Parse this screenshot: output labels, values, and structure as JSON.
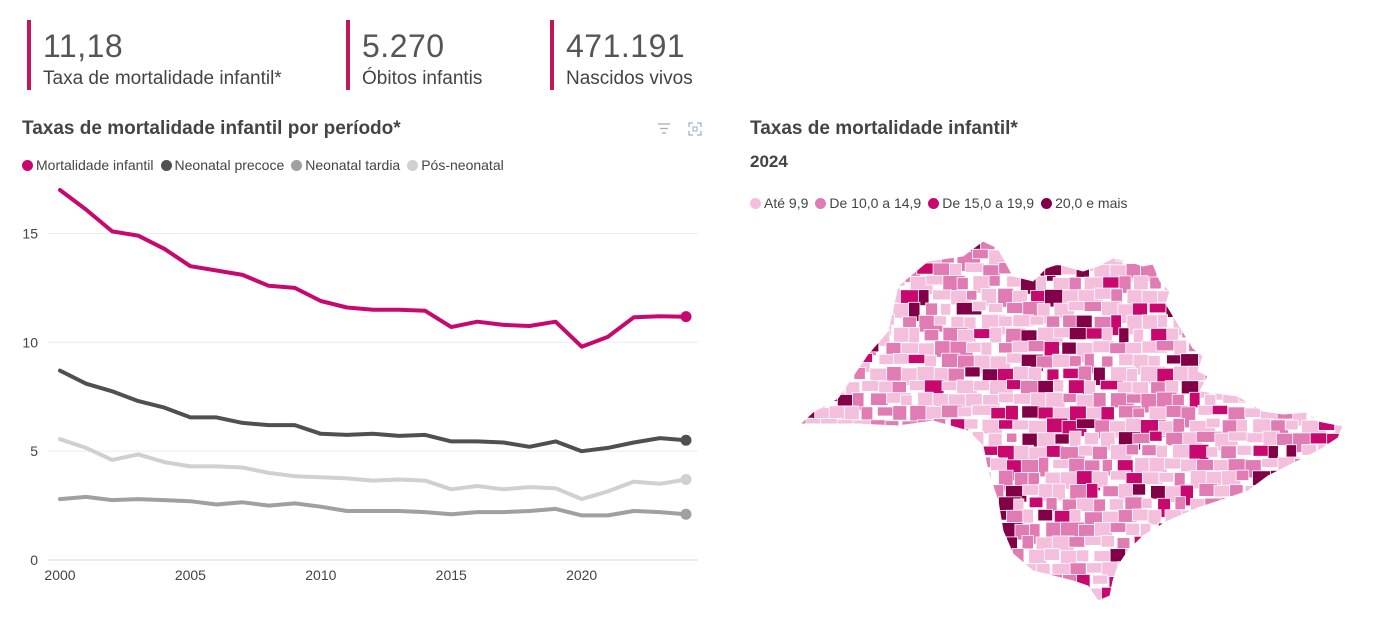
{
  "kpis": [
    {
      "value": "11,18",
      "label": "Taxa de mortalidade infantil*"
    },
    {
      "value": "5.270",
      "label": "Óbitos infantis"
    },
    {
      "value": "471.191",
      "label": "Nascidos vivos"
    }
  ],
  "accent_color": "#c2185b",
  "line_chart": {
    "title": "Taxas de mortalidade infantil por período*",
    "icons": [
      "filter-icon",
      "focus-mode-icon"
    ]
  },
  "map_chart": {
    "title": "Taxas de mortalidade infantil*",
    "subtitle": "2024",
    "legend": [
      {
        "label": "Até 9,9",
        "color": "#f4bfdc"
      },
      {
        "label": "De 10,0 a 14,9",
        "color": "#e07bb3"
      },
      {
        "label": "De 15,0 a 19,9",
        "color": "#c8086f"
      },
      {
        "label": "20,0 e mais",
        "color": "#820048"
      }
    ]
  },
  "chart_data": {
    "type": "line",
    "title": "Taxas de mortalidade infantil por período*",
    "xlabel": "",
    "ylabel": "",
    "xlim": [
      2000,
      2024
    ],
    "ylim": [
      0,
      17
    ],
    "yticks": [
      0,
      5,
      10,
      15
    ],
    "xticks": [
      2000,
      2005,
      2010,
      2015,
      2020
    ],
    "x": [
      2000,
      2001,
      2002,
      2003,
      2004,
      2005,
      2006,
      2007,
      2008,
      2009,
      2010,
      2011,
      2012,
      2013,
      2014,
      2015,
      2016,
      2017,
      2018,
      2019,
      2020,
      2021,
      2022,
      2023,
      2024
    ],
    "series": [
      {
        "name": "Mortalidade infantil",
        "color": "#c8086f",
        "values": [
          17.0,
          16.1,
          15.1,
          14.9,
          14.3,
          13.5,
          13.3,
          13.1,
          12.6,
          12.5,
          11.9,
          11.6,
          11.5,
          11.5,
          11.45,
          10.7,
          10.95,
          10.8,
          10.75,
          10.95,
          9.8,
          10.25,
          11.15,
          11.2,
          11.18
        ]
      },
      {
        "name": "Neonatal precoce",
        "color": "#505050",
        "values": [
          8.7,
          8.1,
          7.75,
          7.3,
          7.0,
          6.55,
          6.55,
          6.3,
          6.2,
          6.2,
          5.8,
          5.75,
          5.8,
          5.7,
          5.75,
          5.45,
          5.45,
          5.4,
          5.2,
          5.45,
          5.0,
          5.15,
          5.4,
          5.6,
          5.5
        ]
      },
      {
        "name": "Neonatal tardia",
        "color": "#a0a0a0",
        "values": [
          2.8,
          2.9,
          2.75,
          2.8,
          2.75,
          2.7,
          2.55,
          2.65,
          2.5,
          2.6,
          2.45,
          2.25,
          2.25,
          2.25,
          2.2,
          2.1,
          2.2,
          2.2,
          2.25,
          2.35,
          2.05,
          2.05,
          2.25,
          2.2,
          2.1
        ]
      },
      {
        "name": "Pós-neonatal",
        "color": "#d0d0d0",
        "values": [
          5.55,
          5.15,
          4.6,
          4.85,
          4.5,
          4.3,
          4.3,
          4.25,
          4.0,
          3.85,
          3.8,
          3.75,
          3.65,
          3.7,
          3.65,
          3.25,
          3.4,
          3.25,
          3.35,
          3.3,
          2.8,
          3.15,
          3.6,
          3.5,
          3.7
        ]
      }
    ]
  }
}
